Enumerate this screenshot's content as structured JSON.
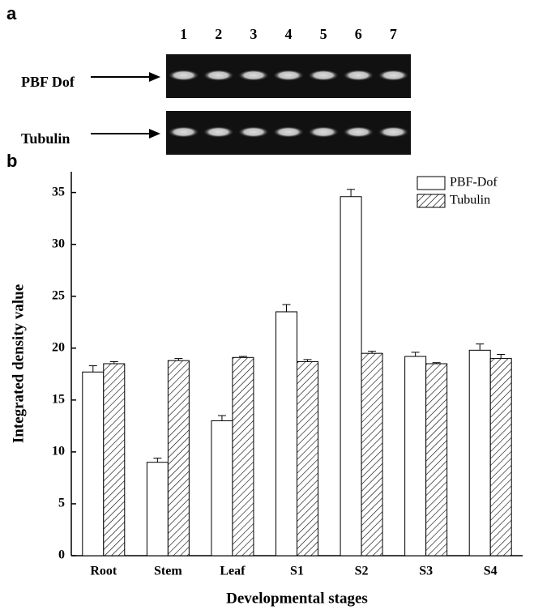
{
  "gel": {
    "label": "a",
    "lanes": [
      "1",
      "2",
      "3",
      "4",
      "5",
      "6",
      "7"
    ],
    "rows": [
      "PBF Dof",
      "Tubulin"
    ]
  },
  "chart_data": {
    "type": "bar",
    "panel_label": "b",
    "categories": [
      "Root",
      "Stem",
      "Leaf",
      "S1",
      "S2",
      "S3",
      "S4"
    ],
    "series": [
      {
        "name": "PBF-Dof",
        "color": "#ffffff",
        "hatch": false,
        "values": [
          17.7,
          9.0,
          13.0,
          23.5,
          34.6,
          19.2,
          19.8
        ],
        "errors": [
          0.6,
          0.4,
          0.5,
          0.7,
          0.7,
          0.4,
          0.6
        ]
      },
      {
        "name": "Tubulin",
        "color": "#ffffff",
        "hatch": true,
        "values": [
          18.5,
          18.8,
          19.1,
          18.7,
          19.5,
          18.5,
          19.0
        ],
        "errors": [
          0.2,
          0.2,
          0.1,
          0.2,
          0.2,
          0.1,
          0.4
        ]
      }
    ],
    "ylim": [
      0,
      37
    ],
    "yticks": [
      0,
      5,
      10,
      15,
      20,
      25,
      30,
      35
    ],
    "x_label": "Developmental stages",
    "y_label": "Integrated density value",
    "legend": "upper right"
  }
}
